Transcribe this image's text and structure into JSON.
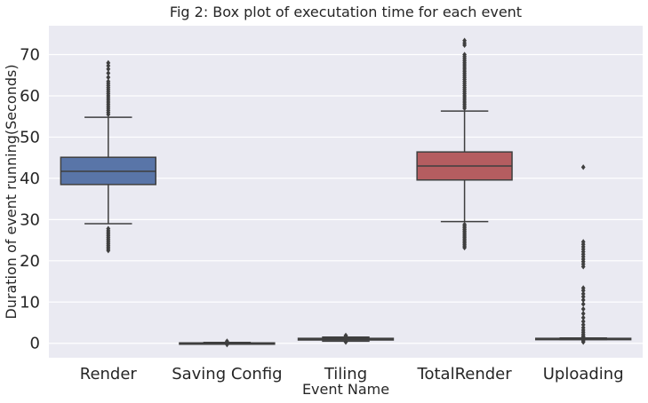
{
  "chart_data": {
    "type": "box",
    "title": "Fig 2: Box plot of executation time for each event",
    "xlabel": "Event Name",
    "ylabel": "Duration of event running(Seconds)",
    "ylim": [
      -3.5,
      77
    ],
    "yticks": [
      0,
      10,
      20,
      30,
      40,
      50,
      60,
      70
    ],
    "grid": true,
    "categories": [
      "Render",
      "Saving Config",
      "Tiling",
      "TotalRender",
      "Uploading"
    ],
    "colors": [
      "#5975a8",
      "#5f9e6e",
      "#cc8963",
      "#b55d60",
      "#8572ad"
    ],
    "boxes": [
      {
        "category": "Render",
        "whisker_low": 29.0,
        "q1": 38.5,
        "median": 41.7,
        "q3": 45.1,
        "whisker_high": 54.8,
        "outliers": [
          22.5,
          22.9,
          23.3,
          23.7,
          24.1,
          24.5,
          24.9,
          25.3,
          25.7,
          26.1,
          26.5,
          26.9,
          27.3,
          27.8,
          55.5,
          56.0,
          56.5,
          57.0,
          57.5,
          58.0,
          58.5,
          59.0,
          59.5,
          60.0,
          60.5,
          61.0,
          61.5,
          62.0,
          62.5,
          63.0,
          63.5,
          64.5,
          65.5,
          66.5,
          67.3,
          68.0
        ]
      },
      {
        "category": "Saving Config",
        "whisker_low": 0.0,
        "q1": 0.0,
        "median": 0.05,
        "q3": 0.1,
        "whisker_high": 0.2,
        "outliers": [
          -0.3,
          0.3,
          0.5
        ]
      },
      {
        "category": "Tiling",
        "whisker_low": 0.5,
        "q1": 0.8,
        "median": 1.0,
        "q3": 1.2,
        "whisker_high": 1.5,
        "outliers": [
          0.3,
          1.7,
          1.9
        ]
      },
      {
        "category": "TotalRender",
        "whisker_low": 29.5,
        "q1": 39.6,
        "median": 43.0,
        "q3": 46.4,
        "whisker_high": 56.3,
        "outliers": [
          23.2,
          23.6,
          24.0,
          24.4,
          24.8,
          25.2,
          25.6,
          26.0,
          26.4,
          26.8,
          27.2,
          27.6,
          28.0,
          28.4,
          28.8,
          57.0,
          57.5,
          58.0,
          58.5,
          59.0,
          59.5,
          60.0,
          60.5,
          61.0,
          61.5,
          62.0,
          62.5,
          63.0,
          63.5,
          64.0,
          64.5,
          65.0,
          65.5,
          66.0,
          66.5,
          67.0,
          67.5,
          68.0,
          68.5,
          69.0,
          69.5,
          70.0,
          72.3,
          72.8,
          73.4
        ]
      },
      {
        "category": "Uploading",
        "whisker_low": 0.9,
        "q1": 1.0,
        "median": 1.1,
        "q3": 1.2,
        "whisker_high": 1.3,
        "outliers": [
          0.3,
          0.6,
          1.5,
          1.8,
          2.2,
          2.7,
          3.2,
          3.8,
          4.5,
          5.3,
          6.2,
          7.2,
          8.3,
          9.5,
          10.5,
          11.3,
          12.0,
          12.8,
          13.4,
          18.6,
          19.2,
          19.8,
          20.4,
          21.0,
          21.6,
          22.2,
          22.8,
          23.4,
          24.0,
          24.6,
          42.7
        ]
      }
    ]
  }
}
